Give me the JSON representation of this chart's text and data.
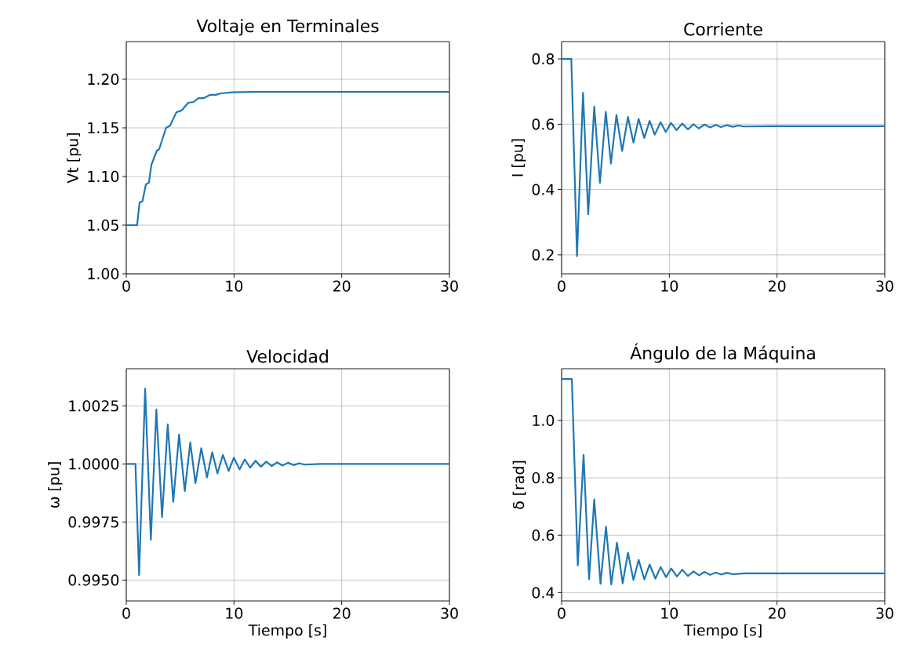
{
  "chart_data": [
    {
      "type": "line",
      "title": "Voltaje en Terminales",
      "ylabel": "Vt [pu]",
      "grid": true,
      "xlim": [
        0,
        30
      ],
      "ylim": [
        1.0,
        1.2387
      ],
      "xticks": [
        0,
        10,
        20,
        30
      ],
      "yticks": [
        {
          "value": 1.0,
          "label": "1.00"
        },
        {
          "value": 1.05,
          "label": "1.05"
        },
        {
          "value": 1.1,
          "label": "1.10"
        },
        {
          "value": 1.15,
          "label": "1.15"
        },
        {
          "value": 1.2,
          "label": "1.20"
        }
      ],
      "series": [
        {
          "color": "#1f77b4",
          "x": [
            0,
            1.0,
            1.24,
            1.5,
            1.82,
            2.1,
            2.33,
            2.84,
            3.05,
            3.69,
            4.07,
            4.65,
            5.14,
            5.75,
            6.25,
            6.7,
            7.2,
            7.8,
            8.3,
            8.8,
            9.87,
            12,
            30
          ],
          "values": [
            1.05,
            1.05,
            1.0734,
            1.0745,
            1.092,
            1.0935,
            1.112,
            1.1266,
            1.128,
            1.15,
            1.1524,
            1.166,
            1.168,
            1.1758,
            1.1766,
            1.1806,
            1.1806,
            1.184,
            1.184,
            1.1855,
            1.1866,
            1.187,
            1.187
          ]
        }
      ]
    },
    {
      "type": "line",
      "title": "Corriente",
      "ylabel": "I [pu]",
      "grid": true,
      "xlim": [
        0,
        30
      ],
      "ylim": [
        0.142,
        0.853
      ],
      "xticks": [
        0,
        10,
        20,
        30
      ],
      "yticks": [
        0.2,
        0.4,
        0.6,
        0.8
      ],
      "series": [
        {
          "color": "#1f77b4",
          "x": [
            0,
            0.9,
            1.43,
            1.99,
            2.47,
            3.03,
            3.56,
            4.1,
            4.58,
            5.09,
            5.62,
            6.16,
            6.67,
            7.15,
            7.68,
            8.17,
            8.65,
            9.19,
            9.67,
            10.16,
            10.67,
            11.2,
            11.73,
            12.24,
            12.73,
            13.26,
            13.79,
            14.3,
            14.8,
            15.35,
            15.9,
            16.4,
            16.9,
            19.3,
            30
          ],
          "values": [
            0.8,
            0.8,
            0.196,
            0.696,
            0.324,
            0.654,
            0.42,
            0.638,
            0.48,
            0.628,
            0.518,
            0.622,
            0.544,
            0.616,
            0.558,
            0.61,
            0.568,
            0.606,
            0.576,
            0.604,
            0.582,
            0.602,
            0.584,
            0.6,
            0.587,
            0.599,
            0.59,
            0.598,
            0.591,
            0.597,
            0.592,
            0.596,
            0.593,
            0.594,
            0.594
          ]
        }
      ]
    },
    {
      "type": "line",
      "title": "Velocidad",
      "xlabel": "Tiempo [s]",
      "ylabel": "ω [pu]",
      "grid": true,
      "xlim": [
        0,
        30
      ],
      "ylim": [
        0.9941,
        1.0041
      ],
      "xticks": [
        0,
        10,
        20,
        30
      ],
      "yticks": [
        {
          "value": 0.995,
          "label": "0.9950"
        },
        {
          "value": 0.9975,
          "label": "0.9975"
        },
        {
          "value": 1.0,
          "label": "1.0000"
        },
        {
          "value": 1.0025,
          "label": "1.0025"
        }
      ],
      "series": [
        {
          "color": "#1f77b4",
          "x": [
            0,
            0.85,
            1.19,
            1.75,
            2.28,
            2.79,
            3.32,
            3.85,
            4.36,
            4.9,
            5.43,
            5.94,
            6.42,
            6.96,
            7.49,
            7.98,
            8.46,
            8.97,
            9.5,
            9.99,
            10.52,
            11.0,
            11.5,
            12.0,
            12.5,
            13.0,
            13.5,
            14.0,
            14.5,
            15.0,
            15.55,
            16.05,
            16.55,
            18,
            30
          ],
          "values": [
            1.0,
            1.0,
            0.99522,
            1.00324,
            0.99673,
            1.00235,
            0.99771,
            1.00171,
            0.99837,
            1.00127,
            0.99883,
            1.00093,
            0.99917,
            1.00068,
            0.99942,
            1.0005,
            0.99959,
            1.00039,
            0.9997,
            1.00027,
            0.99977,
            1.00019,
            0.99984,
            1.00014,
            0.99988,
            1.0001,
            0.99991,
            1.00007,
            0.99993,
            1.00005,
            0.99995,
            1.00003,
            0.99997,
            1.0,
            1.0
          ]
        }
      ]
    },
    {
      "type": "line",
      "title": "Ángulo de la Máquina",
      "xlabel": "Tiempo [s]",
      "ylabel": "δ [rad]",
      "grid": true,
      "xlim": [
        0,
        30
      ],
      "ylim": [
        0.371,
        1.18
      ],
      "xticks": [
        0,
        10,
        20,
        30
      ],
      "yticks": [
        0.4,
        0.6,
        0.8,
        {
          "value": 1.0,
          "label": "1.0"
        }
      ],
      "series": [
        {
          "color": "#1f77b4",
          "x": [
            0,
            0.95,
            1.5,
            2.04,
            2.55,
            3.03,
            3.61,
            4.12,
            4.61,
            5.14,
            5.67,
            6.16,
            6.67,
            7.15,
            7.68,
            8.17,
            8.71,
            9.19,
            9.7,
            10.18,
            10.71,
            11.2,
            11.73,
            12.24,
            12.77,
            13.26,
            13.79,
            14.3,
            14.8,
            15.35,
            15.9,
            17,
            30
          ],
          "values": [
            1.144,
            1.144,
            0.495,
            0.88,
            0.447,
            0.725,
            0.431,
            0.63,
            0.429,
            0.574,
            0.432,
            0.539,
            0.444,
            0.514,
            0.446,
            0.498,
            0.449,
            0.489,
            0.454,
            0.484,
            0.456,
            0.48,
            0.458,
            0.474,
            0.46,
            0.472,
            0.462,
            0.47,
            0.463,
            0.469,
            0.464,
            0.467,
            0.467
          ]
        }
      ]
    }
  ]
}
